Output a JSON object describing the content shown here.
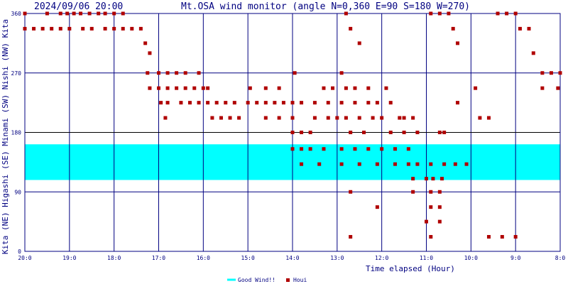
{
  "header": {
    "timestamp": "2024/09/06 20:00",
    "title": "Mt.OSA wind monitor (angle N=0,360 E=90 S=180 W=270)"
  },
  "colors": {
    "frame": "#000080",
    "grid": "#000080",
    "good_band": "#00ffff",
    "houi": "#b00000",
    "axis_line_180": "#000000"
  },
  "legend": {
    "good_label": "Good Wind!!",
    "houi_label": "Houi"
  },
  "chart_data": {
    "type": "scatter",
    "title": "Mt.OSA wind monitor (angle N=0,360 E=90 S=180 W=270)",
    "xlabel": "Time elapsed (Hour)",
    "ylabel_sectors": [
      "Kita",
      "(NE)",
      "Higashi",
      "(SE)",
      "Minami",
      "(SW)",
      "Nishi",
      "(NW)",
      "Kita"
    ],
    "x_direction": "reversed",
    "xlim_hours": [
      20,
      8
    ],
    "x_ticks": [
      "20:0",
      "19:0",
      "18:0",
      "17:0",
      "16:0",
      "15:0",
      "14:0",
      "13:0",
      "12:0",
      "11:0",
      "10:0",
      "9:0",
      "8:0"
    ],
    "ylim": [
      0,
      360
    ],
    "y_ticks": [
      "0",
      "90",
      "180",
      "270",
      "360"
    ],
    "grid": true,
    "legend_position": "bottom-center",
    "good_wind_range_deg": [
      108,
      162
    ],
    "series": [
      {
        "name": "Houi",
        "type": "scatter",
        "points": [
          [
            20.0,
            360
          ],
          [
            19.5,
            360
          ],
          [
            19.2,
            360
          ],
          [
            19.05,
            360
          ],
          [
            18.9,
            360
          ],
          [
            18.75,
            360
          ],
          [
            18.55,
            360
          ],
          [
            18.35,
            360
          ],
          [
            18.2,
            360
          ],
          [
            18.0,
            360
          ],
          [
            17.8,
            360
          ],
          [
            20.0,
            337
          ],
          [
            19.8,
            337
          ],
          [
            19.6,
            337
          ],
          [
            19.4,
            337
          ],
          [
            19.2,
            337
          ],
          [
            19.0,
            337
          ],
          [
            18.7,
            337
          ],
          [
            18.5,
            337
          ],
          [
            18.2,
            337
          ],
          [
            18.0,
            337
          ],
          [
            17.8,
            337
          ],
          [
            17.6,
            337
          ],
          [
            17.4,
            337
          ],
          [
            17.3,
            315
          ],
          [
            17.2,
            300
          ],
          [
            17.25,
            270
          ],
          [
            17.0,
            270
          ],
          [
            16.8,
            270
          ],
          [
            16.6,
            270
          ],
          [
            16.4,
            270
          ],
          [
            16.1,
            270
          ],
          [
            17.2,
            247
          ],
          [
            17.0,
            247
          ],
          [
            16.8,
            247
          ],
          [
            16.6,
            247
          ],
          [
            16.4,
            247
          ],
          [
            16.2,
            247
          ],
          [
            16.0,
            247
          ],
          [
            15.9,
            247
          ],
          [
            16.95,
            225
          ],
          [
            16.8,
            225
          ],
          [
            16.5,
            225
          ],
          [
            16.3,
            225
          ],
          [
            16.1,
            225
          ],
          [
            16.85,
            202
          ],
          [
            15.9,
            225
          ],
          [
            15.7,
            225
          ],
          [
            15.5,
            225
          ],
          [
            15.3,
            225
          ],
          [
            15.8,
            202
          ],
          [
            15.6,
            202
          ],
          [
            15.4,
            202
          ],
          [
            15.2,
            202
          ],
          [
            15.0,
            225
          ],
          [
            14.8,
            225
          ],
          [
            14.6,
            225
          ],
          [
            14.4,
            225
          ],
          [
            14.2,
            225
          ],
          [
            14.0,
            225
          ],
          [
            14.95,
            247
          ],
          [
            14.6,
            247
          ],
          [
            14.3,
            247
          ],
          [
            13.95,
            270
          ],
          [
            14.6,
            202
          ],
          [
            14.3,
            202
          ],
          [
            14.0,
            202
          ],
          [
            14.0,
            180
          ],
          [
            13.8,
            180
          ],
          [
            13.6,
            180
          ],
          [
            13.8,
            225
          ],
          [
            13.5,
            225
          ],
          [
            13.2,
            225
          ],
          [
            12.9,
            225
          ],
          [
            12.6,
            225
          ],
          [
            13.3,
            247
          ],
          [
            13.1,
            247
          ],
          [
            12.8,
            247
          ],
          [
            12.6,
            247
          ],
          [
            12.3,
            247
          ],
          [
            11.9,
            247
          ],
          [
            13.5,
            202
          ],
          [
            13.2,
            202
          ],
          [
            13.0,
            202
          ],
          [
            12.8,
            202
          ],
          [
            12.5,
            202
          ],
          [
            12.2,
            202
          ],
          [
            12.0,
            202
          ],
          [
            11.5,
            202
          ],
          [
            12.7,
            180
          ],
          [
            12.4,
            180
          ],
          [
            11.8,
            180
          ],
          [
            11.5,
            180
          ],
          [
            11.2,
            180
          ],
          [
            10.7,
            180
          ],
          [
            12.9,
            270
          ],
          [
            12.8,
            360
          ],
          [
            12.7,
            337
          ],
          [
            12.5,
            315
          ],
          [
            12.3,
            225
          ],
          [
            12.1,
            225
          ],
          [
            11.8,
            225
          ],
          [
            11.6,
            202
          ],
          [
            11.3,
            202
          ],
          [
            14.0,
            155
          ],
          [
            13.8,
            155
          ],
          [
            13.6,
            155
          ],
          [
            13.3,
            155
          ],
          [
            13.8,
            132
          ],
          [
            13.4,
            132
          ],
          [
            12.9,
            155
          ],
          [
            12.6,
            155
          ],
          [
            12.3,
            155
          ],
          [
            12.0,
            155
          ],
          [
            11.7,
            155
          ],
          [
            11.4,
            155
          ],
          [
            12.9,
            132
          ],
          [
            12.5,
            132
          ],
          [
            12.1,
            132
          ],
          [
            11.7,
            132
          ],
          [
            11.4,
            132
          ],
          [
            11.2,
            132
          ],
          [
            10.9,
            132
          ],
          [
            10.6,
            132
          ],
          [
            10.35,
            132
          ],
          [
            10.1,
            132
          ],
          [
            11.3,
            110
          ],
          [
            11.0,
            110
          ],
          [
            10.85,
            110
          ],
          [
            10.65,
            110
          ],
          [
            10.9,
            90
          ],
          [
            10.7,
            90
          ],
          [
            11.3,
            90
          ],
          [
            12.7,
            90
          ],
          [
            10.9,
            67
          ],
          [
            10.7,
            67
          ],
          [
            12.1,
            67
          ],
          [
            11.0,
            45
          ],
          [
            10.7,
            45
          ],
          [
            10.9,
            22
          ],
          [
            12.7,
            22
          ],
          [
            10.7,
            360
          ],
          [
            10.9,
            360
          ],
          [
            10.5,
            360
          ],
          [
            10.4,
            337
          ],
          [
            10.3,
            315
          ],
          [
            10.3,
            225
          ],
          [
            10.6,
            180
          ],
          [
            9.6,
            202
          ],
          [
            9.8,
            202
          ],
          [
            9.9,
            247
          ],
          [
            9.4,
            360
          ],
          [
            9.2,
            360
          ],
          [
            9.0,
            360
          ],
          [
            8.9,
            337
          ],
          [
            8.7,
            337
          ],
          [
            8.6,
            300
          ],
          [
            8.4,
            270
          ],
          [
            8.2,
            270
          ],
          [
            8.0,
            270
          ],
          [
            8.4,
            247
          ],
          [
            8.05,
            247
          ],
          [
            9.6,
            22
          ],
          [
            9.3,
            22
          ],
          [
            9.0,
            22
          ]
        ]
      }
    ]
  }
}
